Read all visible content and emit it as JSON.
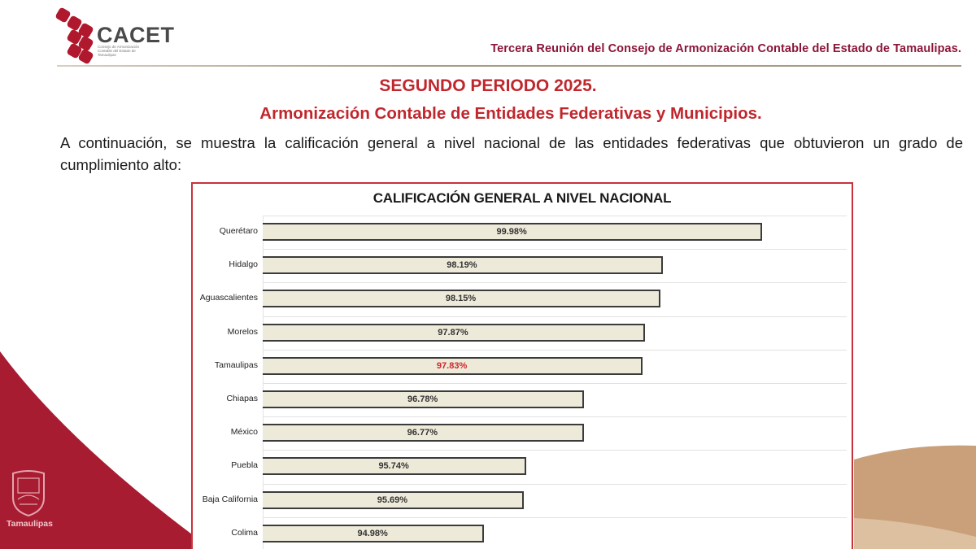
{
  "header": {
    "logo_name": "CACET",
    "logo_subtitle": "Consejo de Armonización Contable del Estado de Tamaulipas",
    "meeting_title": "Tercera Reunión del Consejo de Armonización Contable del Estado de Tamaulipas."
  },
  "content": {
    "period_title": "SEGUNDO PERIODO 2025.",
    "subtitle": "Armonización Contable de Entidades Federativas y Municipios.",
    "intro_text": "A continuación, se muestra la calificación general a nivel nacional de las entidades federativas que obtuvieron un grado de cumplimiento alto:"
  },
  "footer": {
    "state_emblem_label": "Tamaulipas"
  },
  "colors": {
    "brand_red": "#b0182d",
    "title_red": "#c0272d",
    "header_maroon": "#8b1538",
    "bar_fill": "#eeead9",
    "bar_border": "#3b3b3b",
    "highlight_value": "#d0262c",
    "sand_accent": "#cfa57a"
  },
  "chart_data": {
    "type": "bar",
    "orientation": "horizontal",
    "title": "CALIFICACIÓN GENERAL A NIVEL NACIONAL",
    "xlabel": "",
    "ylabel": "",
    "categories": [
      "Querétaro",
      "Hidalgo",
      "Aguascalientes",
      "Morelos",
      "Tamaulipas",
      "Chiapas",
      "México",
      "Puebla",
      "Baja California",
      "Colima"
    ],
    "values": [
      99.98,
      98.19,
      98.15,
      97.87,
      97.83,
      96.78,
      96.77,
      95.74,
      95.69,
      94.98
    ],
    "value_labels": [
      "99.98%",
      "98.19%",
      "98.15%",
      "97.87%",
      "97.83%",
      "96.78%",
      "96.77%",
      "95.74%",
      "95.69%",
      "94.98%"
    ],
    "highlighted_category": "Tamaulipas",
    "xlim": [
      91,
      100
    ],
    "grid": "horizontal row separators",
    "legend": "none",
    "unit": "%"
  }
}
